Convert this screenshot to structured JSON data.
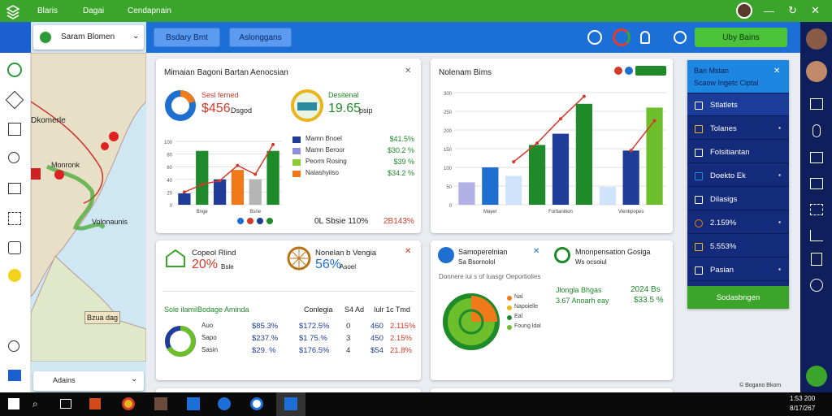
{
  "topbar": {
    "items": [
      "Blaris",
      "Dagai",
      "Cendapnain"
    ]
  },
  "map": {
    "search": "Saram Blomen",
    "labels": [
      "Dkomerle",
      "Monronk",
      "Volonaunis",
      "Bzua dag"
    ],
    "dropdown": "Adains"
  },
  "toolbar": {
    "tabs": [
      "Bsdary Bmt",
      "Aslonggans"
    ],
    "button": "Uby Bains"
  },
  "card1": {
    "title": "Mimaian Bagoni Bartan Aenocsian",
    "kpis": [
      {
        "label": "Sesl ferned",
        "value": "$456",
        "unit": "Dsgod"
      },
      {
        "label": "Desitenal",
        "value": "19.65",
        "unit": "psip"
      }
    ],
    "chart": {
      "type": "bar",
      "ylim": [
        0,
        100
      ],
      "yticks": [
        0,
        20,
        40,
        60,
        80,
        100
      ],
      "values": [
        18,
        85,
        40,
        55,
        40,
        85
      ],
      "colors": [
        "#1f3c99",
        "#1e8a2a",
        "#1f3c99",
        "#f07a1a",
        "#b5b5b5",
        "#1e8a2a"
      ],
      "line": [
        20,
        32,
        38,
        62,
        48,
        95
      ],
      "line_color": "#d33a2a",
      "xlabels": [
        "Bnge",
        "Bsrie"
      ]
    },
    "legend": [
      {
        "name": "Mamn Bnoel",
        "value": "$41.5%",
        "color": "#1f3c99"
      },
      {
        "name": "Mamn Beroor",
        "value": "$30.2 %",
        "color": "#8f8fe0"
      },
      {
        "name": "Peorm Rosing",
        "value": "$39 %",
        "color": "#8ecb3a"
      },
      {
        "name": "Nalashyiiso",
        "value": "$34.2 %",
        "color": "#f07a1a"
      }
    ],
    "footer": [
      "0L Sbsie 110%",
      "2B143%"
    ]
  },
  "card2": {
    "title": "Nolenam Bims",
    "chart": {
      "type": "bar",
      "ylim": [
        0,
        300
      ],
      "yticks": [
        0,
        50,
        100,
        150,
        200,
        250,
        300
      ],
      "values": [
        60,
        100,
        77,
        160,
        190,
        270,
        48,
        145,
        260
      ],
      "colors": [
        "#b3b0e6",
        "#1f6fd0",
        "#cfe3fb",
        "#1e8a2a",
        "#1f3c99",
        "#1e8a2a",
        "#cfe3fb",
        "#1f3c99",
        "#6cbf2a"
      ],
      "line": [
        null,
        null,
        115,
        165,
        230,
        290,
        null,
        145,
        225
      ],
      "line_color": "#d33a2a",
      "xlabels": [
        "Mayer",
        "Fortlanition",
        "Vlenbpopes"
      ]
    }
  },
  "card3": {
    "kpis": [
      {
        "label": "Copeol Rlind",
        "value": "20%",
        "unit": "Bsle"
      },
      {
        "label": "Nonelan b Vengia",
        "value": "56%",
        "unit": "Asoel"
      }
    ],
    "table_title": "Sole ilamilBodage Aminda",
    "columns": [
      "Conlegia",
      "S4 Ad",
      "Iulr 1c Tmd"
    ],
    "rows": [
      [
        "Auo",
        "$85.3%",
        "$172.5%",
        "0",
        "460",
        "2.115%"
      ],
      [
        "Sapo",
        "$237.%",
        "$1 75.%",
        "3",
        "450",
        "2.15%"
      ],
      [
        "Sasin",
        "$29. %",
        "$176.5%",
        "4",
        "$54",
        "21.8%"
      ]
    ]
  },
  "card4": {
    "kpis": [
      {
        "label": "Samoperelnian",
        "unit": "Sa Bsornolol"
      },
      {
        "label": "Mnonpensation Gosiga",
        "unit": "Ws ocsoiul"
      }
    ],
    "subtitle": "Donnere iui s of Iuasgr Oeportiolies",
    "pie_legend": [
      "Nal",
      "Napoielle",
      "Eal",
      "Foung ldal"
    ],
    "stats": [
      [
        "Jlongla Bhgas",
        "2024 Bs"
      ],
      [
        "3.67 Anoarh eay",
        "$33.5 %"
      ]
    ]
  },
  "panel": {
    "title": "Ban Mstan",
    "subtitle": "Scaow Ingetc Ciptal",
    "items": [
      "Stlatlets",
      "Tolanes",
      "Folsitiantan",
      "Doekto Ek",
      "Dilasigs",
      "2.159%",
      "5.553%",
      "Pasian"
    ],
    "button": "Sodasbngen"
  },
  "footer_note": "© Bogano Bkom",
  "clock": [
    "1:53 200",
    "8/17/267"
  ]
}
